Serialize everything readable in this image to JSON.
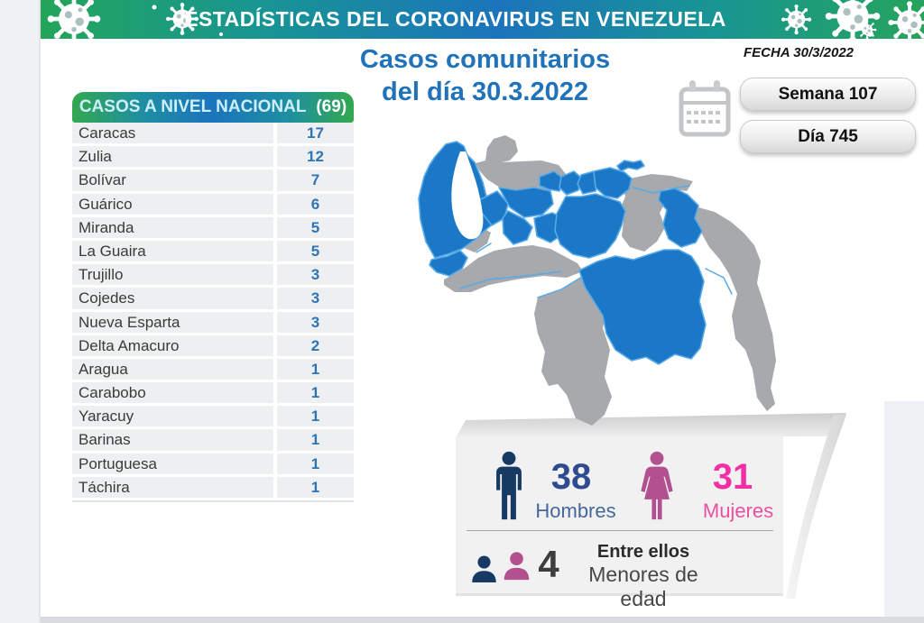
{
  "banner": {
    "title": "ESTADÍSTICAS DEL CORONAVIRUS EN VENEZUELA"
  },
  "header": {
    "subtitle_line1": "Casos comunitarios",
    "subtitle_line2": "del día 30.3.2022",
    "fecha": "FECHA 30/3/2022",
    "badges": [
      {
        "label": "Semana 107"
      },
      {
        "label": "Día 745"
      }
    ]
  },
  "table": {
    "title": "CASOS A NIVEL NACIONAL",
    "total": "(69)",
    "rows": [
      {
        "state": "Caracas",
        "cases": "17"
      },
      {
        "state": "Zulia",
        "cases": "12"
      },
      {
        "state": "Bolívar",
        "cases": "7"
      },
      {
        "state": "Guárico",
        "cases": "6"
      },
      {
        "state": "Miranda",
        "cases": "5"
      },
      {
        "state": "La Guaira",
        "cases": "5"
      },
      {
        "state": "Trujillo",
        "cases": "3"
      },
      {
        "state": "Cojedes",
        "cases": "3"
      },
      {
        "state": "Nueva Esparta",
        "cases": "3"
      },
      {
        "state": "Delta Amacuro",
        "cases": "2"
      },
      {
        "state": "Aragua",
        "cases": "1"
      },
      {
        "state": "Carabobo",
        "cases": "1"
      },
      {
        "state": "Yaracuy",
        "cases": "1"
      },
      {
        "state": "Barinas",
        "cases": "1"
      },
      {
        "state": "Portuguesa",
        "cases": "1"
      },
      {
        "state": "Táchira",
        "cases": "1"
      }
    ]
  },
  "stats": {
    "men": {
      "value": "38",
      "label": "Hombres"
    },
    "women": {
      "value": "31",
      "label": "Mujeres"
    },
    "minors": {
      "value": "4",
      "label_line1": "Entre ellos",
      "label_line2": "Menores de edad"
    }
  },
  "map": {
    "colors": {
      "highlight": "#1a78c6",
      "base": "#a7a9ac",
      "border": "#58a9e8",
      "water": "#ffffff"
    },
    "regions": [
      {
        "id": "zulia",
        "label": "Zulia",
        "highlighted": true
      },
      {
        "id": "tachira",
        "label": "Táchira",
        "highlighted": true
      },
      {
        "id": "merida",
        "label": "Mérida",
        "highlighted": false
      },
      {
        "id": "falcon",
        "label": "Falcón",
        "highlighted": false
      },
      {
        "id": "trujillo",
        "label": "Trujillo",
        "highlighted": true
      },
      {
        "id": "lara",
        "label": "Lara",
        "highlighted": true
      },
      {
        "id": "yaracuy",
        "label": "Yaracuy",
        "highlighted": true
      },
      {
        "id": "carabobo",
        "label": "Carabobo",
        "highlighted": true
      },
      {
        "id": "aragua",
        "label": "Aragua",
        "highlighted": true
      },
      {
        "id": "miranda",
        "label": "Miranda / Caracas / La Guaira",
        "highlighted": true
      },
      {
        "id": "portuguesa",
        "label": "Portuguesa",
        "highlighted": true
      },
      {
        "id": "cojedes",
        "label": "Cojedes",
        "highlighted": true
      },
      {
        "id": "guarico",
        "label": "Guárico",
        "highlighted": true
      },
      {
        "id": "apure-barinas",
        "label": "Apure / Barinas",
        "highlighted": false
      },
      {
        "id": "amazonas",
        "label": "Amazonas",
        "highlighted": false
      },
      {
        "id": "anzoategui",
        "label": "Anzoátegui",
        "highlighted": false
      },
      {
        "id": "sucre",
        "label": "Sucre",
        "highlighted": false
      },
      {
        "id": "nueva-esparta",
        "label": "Nueva Esparta",
        "highlighted": true
      },
      {
        "id": "monagas",
        "label": "Monagas",
        "highlighted": true
      },
      {
        "id": "bolivar",
        "label": "Bolívar",
        "highlighted": true
      },
      {
        "id": "delta-esequibo",
        "label": "Delta Amacuro / Esequibo",
        "highlighted": false
      }
    ]
  },
  "icons": {
    "virus": "virus-icon",
    "calendar": "calendar-icon",
    "man": "man-icon",
    "woman": "woman-icon",
    "minor_boy": "boy-bust-icon",
    "minor_girl": "girl-bust-icon"
  },
  "colors": {
    "heading_blue": "#2173b9",
    "table_value_blue": "#2e75b6",
    "men_icon": "#173a63",
    "men_number": "#2f4b8f",
    "men_label": "#44689c",
    "women_icon": "#b3508f",
    "women_number": "#f22fa5",
    "women_label": "#e9519f",
    "minors_number": "#3d3d3d"
  }
}
